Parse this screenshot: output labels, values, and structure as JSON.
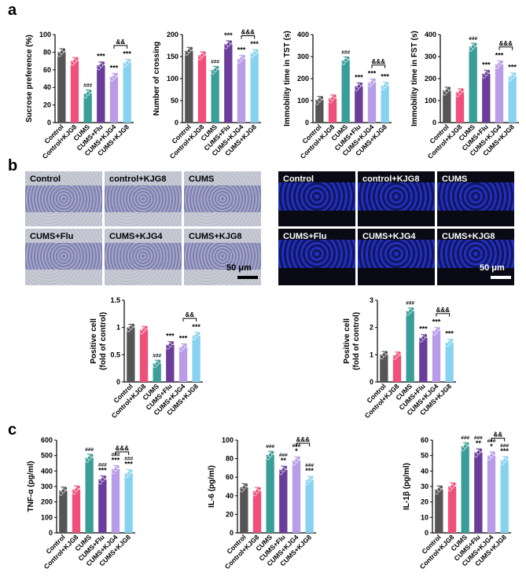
{
  "panel_labels": {
    "a": "a",
    "b": "b",
    "c": "c"
  },
  "groups": [
    "Control",
    "Control+KJG8",
    "CUMS",
    "CUMS+Flu",
    "CUMS+KJG4",
    "CUMS+KJG8"
  ],
  "colors": [
    "#555555",
    "#ef4f7a",
    "#3a9e98",
    "#6a3d9a",
    "#b89ce8",
    "#87d3ef"
  ],
  "nissl_labels": [
    "Control",
    "control+KJG8",
    "CUMS",
    "CUMS+Flu",
    "CUMS+KJG4",
    "CUMS+KJG8"
  ],
  "fluor_labels": [
    "Control",
    "control+KJG8",
    "CUMS",
    "CUMS+Flu",
    "CUMS+KJG4",
    "CUMS+KJG8"
  ],
  "scale_text": "50 μm",
  "chart_data": [
    {
      "type": "bar",
      "ylabel": "Sucrose preference (%)",
      "ylim": [
        0,
        100
      ],
      "yticks": [
        0,
        20,
        40,
        60,
        80,
        100
      ],
      "values": [
        80,
        70,
        33,
        65,
        52,
        68
      ],
      "annotations": [
        "",
        "",
        "###",
        "***",
        "***",
        "***"
      ],
      "comparison": {
        "text": "&&",
        "from": 4,
        "to": 5
      }
    },
    {
      "type": "bar",
      "ylabel": "Number of crossing",
      "ylim": [
        0,
        200
      ],
      "yticks": [
        0,
        50,
        100,
        150,
        200
      ],
      "values": [
        163,
        153,
        120,
        178,
        145,
        158
      ],
      "annotations": [
        "",
        "",
        "###",
        "***",
        "***",
        "***"
      ],
      "comparison": {
        "text": "&&&",
        "from": 4,
        "to": 5
      }
    },
    {
      "type": "bar",
      "ylabel": "Immobility time in TST (s)",
      "ylim": [
        0,
        400
      ],
      "yticks": [
        0,
        100,
        200,
        300,
        400
      ],
      "values": [
        103,
        110,
        283,
        165,
        183,
        168
      ],
      "annotations": [
        "",
        "",
        "###",
        "***",
        "***",
        "***"
      ],
      "comparison": {
        "text": "&&&",
        "from": 4,
        "to": 5
      }
    },
    {
      "type": "bar",
      "ylabel": "Immobility time in FST (s)",
      "ylim": [
        0,
        400
      ],
      "yticks": [
        0,
        100,
        200,
        300,
        400
      ],
      "values": [
        145,
        138,
        345,
        222,
        265,
        210
      ],
      "annotations": [
        "",
        "",
        "###",
        "***",
        "***",
        "***"
      ],
      "comparison": {
        "text": "&&&",
        "from": 4,
        "to": 5
      }
    },
    {
      "type": "bar",
      "ylabel": "Positive cell\n(fold of control)",
      "ylim": [
        0,
        1.5
      ],
      "yticks": [
        0,
        0.5,
        1.0,
        1.5
      ],
      "values": [
        1.0,
        0.96,
        0.34,
        0.68,
        0.64,
        0.85
      ],
      "annotations": [
        "",
        "",
        "###",
        "***",
        "***",
        "***"
      ],
      "comparison": {
        "text": "&&",
        "from": 4,
        "to": 5
      }
    },
    {
      "type": "bar",
      "ylabel": "Positive cell\n(fold of control)",
      "ylim": [
        0,
        3
      ],
      "yticks": [
        0,
        1,
        2,
        3
      ],
      "values": [
        1.0,
        0.98,
        2.6,
        1.62,
        1.88,
        1.45
      ],
      "annotations": [
        "",
        "",
        "###",
        "***",
        "***",
        "***"
      ],
      "comparison": {
        "text": "&&&",
        "from": 4,
        "to": 5
      }
    },
    {
      "type": "bar",
      "ylabel": "TNF-α (pg/ml)",
      "ylim": [
        0,
        600
      ],
      "yticks": [
        0,
        100,
        200,
        300,
        400,
        500,
        600
      ],
      "values": [
        272,
        280,
        485,
        345,
        412,
        385
      ],
      "annotations": [
        "",
        "",
        "###",
        "###\n***",
        "###\n***",
        "###\n***"
      ],
      "comparison": {
        "text": "&&&",
        "from": 4,
        "to": 5
      }
    },
    {
      "type": "bar",
      "ylabel": "IL-6 (pg/ml)",
      "ylim": [
        0,
        100
      ],
      "yticks": [
        0,
        20,
        40,
        60,
        80,
        100
      ],
      "values": [
        49,
        45,
        84,
        68,
        78,
        57
      ],
      "annotations": [
        "",
        "",
        "###",
        "###\n**",
        "###\n*",
        "###\n***"
      ],
      "comparison": {
        "text": "&&&",
        "from": 4,
        "to": 5
      }
    },
    {
      "type": "bar",
      "ylabel": "IL-1β (pg/ml)",
      "ylim": [
        0,
        60
      ],
      "yticks": [
        0,
        10,
        20,
        30,
        40,
        50,
        60
      ],
      "values": [
        28,
        30,
        56,
        52,
        50,
        47
      ],
      "annotations": [
        "",
        "",
        "###",
        "###\n**",
        "###\n*",
        "###\n***"
      ],
      "comparison": {
        "text": "&&",
        "from": 4,
        "to": 5
      }
    }
  ]
}
